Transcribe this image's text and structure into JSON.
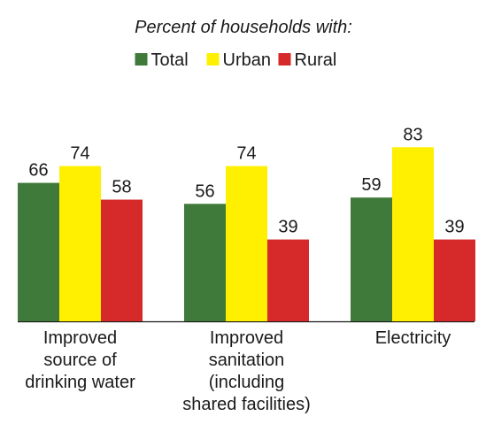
{
  "chart_data": {
    "type": "bar",
    "subtitle": "Percent of households with:",
    "categories": [
      "Improved\nsource of\ndrinking water",
      "Improved\nsanitation\n(including\nshared facilities)",
      "Electricity"
    ],
    "series": [
      {
        "name": "Total",
        "color": "#3f7a3a",
        "values": [
          66,
          56,
          59
        ]
      },
      {
        "name": "Urban",
        "color": "#ffef00",
        "values": [
          74,
          74,
          83
        ]
      },
      {
        "name": "Rural",
        "color": "#d62a2a",
        "values": [
          58,
          39,
          39
        ]
      }
    ],
    "legend": "top"
  }
}
